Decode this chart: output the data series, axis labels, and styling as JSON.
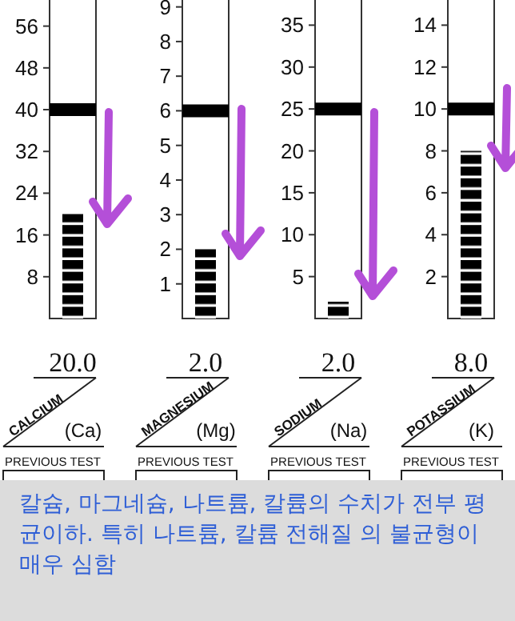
{
  "chart_data": [
    {
      "type": "bar",
      "categories": [
        "CALCIUM"
      ],
      "values": [
        20
      ],
      "color": "#000000",
      "value_labels": [
        "20.0"
      ],
      "ylim": [
        0,
        61
      ],
      "yticks": [
        8,
        16,
        24,
        32,
        40,
        48,
        56
      ],
      "ref_lines": [
        {
          "axis": "y",
          "value": 40,
          "color": "#000000"
        }
      ],
      "annotations": [
        "(Ca)",
        "PREVIOUS TEST"
      ]
    },
    {
      "type": "bar",
      "categories": [
        "MAGNESIUM"
      ],
      "values": [
        2
      ],
      "color": "#000000",
      "value_labels": [
        "2.0"
      ],
      "ylim": [
        0,
        9.2
      ],
      "yticks": [
        1,
        2,
        3,
        4,
        5,
        6,
        7,
        8,
        9
      ],
      "ref_lines": [
        {
          "axis": "y",
          "value": 6,
          "color": "#000000"
        }
      ],
      "annotations": [
        "(Mg)",
        "PREVIOUS TEST"
      ]
    },
    {
      "type": "bar",
      "categories": [
        "SODIUM"
      ],
      "values": [
        2
      ],
      "color": "#000000",
      "value_labels": [
        "2.0"
      ],
      "ylim": [
        0,
        38
      ],
      "yticks": [
        5,
        10,
        15,
        20,
        25,
        30,
        35
      ],
      "ref_lines": [
        {
          "axis": "y",
          "value": 25,
          "color": "#000000"
        }
      ],
      "annotations": [
        "(Na)",
        "PREVIOUS TEST"
      ]
    },
    {
      "type": "bar",
      "categories": [
        "POTASSIUM"
      ],
      "values": [
        8
      ],
      "color": "#000000",
      "value_labels": [
        "8.0"
      ],
      "ylim": [
        0,
        15.2
      ],
      "yticks": [
        2,
        4,
        6,
        8,
        10,
        12,
        14
      ],
      "ref_lines": [
        {
          "axis": "y",
          "value": 10,
          "color": "#000000"
        }
      ],
      "annotations": [
        "(K)",
        "PREVIOUS TEST"
      ]
    },
    {
      "type": "other",
      "annotations": [
        "칼슘, 마그네슘, 나트륨, 칼륨의 수치가 전부 평균이하. 특히 나트륨, 칼륨 전해질 의 불균형이 매우 심함"
      ]
    }
  ]
}
